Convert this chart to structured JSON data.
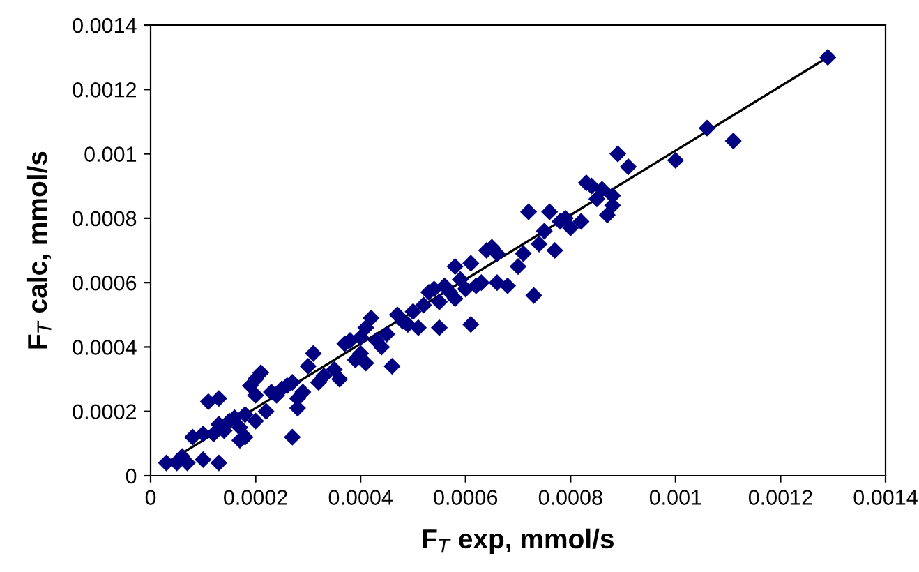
{
  "chart_data": {
    "type": "scatter",
    "xlabel": "F$_{T}$ exp, mmol/s",
    "ylabel": "F$_{T}$ calc, mmol/s",
    "xlim": [
      0,
      0.0014
    ],
    "ylim": [
      0,
      0.0014
    ],
    "xticks": [
      0,
      0.0002,
      0.0004,
      0.0006,
      0.0008,
      0.001,
      0.0012,
      0.0014
    ],
    "yticks": [
      0,
      0.0002,
      0.0004,
      0.0006,
      0.0008,
      0.001,
      0.0012,
      0.0014
    ],
    "grid": false,
    "legend": false,
    "marker": "diamond",
    "series": [
      {
        "color": "#000080",
        "x": [
          3e-05,
          5e-05,
          7e-05,
          6e-05,
          8e-05,
          0.0001,
          0.0001,
          0.00011,
          0.00013,
          0.00012,
          0.00013,
          0.00013,
          0.00014,
          0.00015,
          0.00016,
          0.00017,
          0.00017,
          0.00018,
          0.00018,
          0.00019,
          0.0002,
          0.0002,
          0.00021,
          0.0002,
          0.00022,
          0.00023,
          0.00024,
          0.00025,
          0.00026,
          0.00027,
          0.00027,
          0.00028,
          0.00028,
          0.00029,
          0.0003,
          0.00031,
          0.00032,
          0.00033,
          0.00035,
          0.00036,
          0.00037,
          0.00038,
          0.00039,
          0.0004,
          0.0004,
          0.00041,
          0.00041,
          0.00042,
          0.00043,
          0.00044,
          0.00045,
          0.00046,
          0.00047,
          0.00048,
          0.00049,
          0.0005,
          0.00051,
          0.00052,
          0.00053,
          0.00054,
          0.00055,
          0.00055,
          0.00056,
          0.00057,
          0.00058,
          0.00058,
          0.00059,
          0.0006,
          0.00061,
          0.00062,
          0.00063,
          0.00064,
          0.00065,
          0.00066,
          0.00066,
          0.00061,
          0.00068,
          0.0007,
          0.00071,
          0.00072,
          0.00073,
          0.00074,
          0.00075,
          0.00076,
          0.00077,
          0.00078,
          0.00079,
          0.0008,
          0.00082,
          0.00083,
          0.00084,
          0.00085,
          0.00086,
          0.00087,
          0.00088,
          0.00088,
          0.00089,
          0.00091,
          0.001,
          0.00106,
          0.00111,
          0.00129
        ],
        "values": [
          4e-05,
          4e-05,
          4e-05,
          6e-05,
          0.00012,
          0.00013,
          5e-05,
          0.00023,
          0.00024,
          0.00013,
          4e-05,
          0.00016,
          0.00014,
          0.00017,
          0.00018,
          0.00015,
          0.00011,
          0.00012,
          0.00019,
          0.00028,
          0.0003,
          0.00025,
          0.00032,
          0.00017,
          0.0002,
          0.00026,
          0.00025,
          0.00027,
          0.00028,
          0.00029,
          0.00012,
          0.00024,
          0.00021,
          0.00026,
          0.00034,
          0.00038,
          0.00029,
          0.00031,
          0.00033,
          0.0003,
          0.00041,
          0.00042,
          0.00036,
          0.00038,
          0.00043,
          0.00035,
          0.00046,
          0.00049,
          0.00042,
          0.0004,
          0.00044,
          0.00034,
          0.0005,
          0.00048,
          0.00047,
          0.00051,
          0.00046,
          0.00053,
          0.00057,
          0.00058,
          0.00054,
          0.00046,
          0.00059,
          0.00057,
          0.00055,
          0.00065,
          0.00061,
          0.00058,
          0.00066,
          0.00059,
          0.0006,
          0.0007,
          0.00071,
          0.00069,
          0.0006,
          0.00047,
          0.00059,
          0.00065,
          0.00069,
          0.00082,
          0.00056,
          0.00072,
          0.00076,
          0.00082,
          0.0007,
          0.00079,
          0.0008,
          0.00077,
          0.00079,
          0.00091,
          0.0009,
          0.00086,
          0.00089,
          0.00081,
          0.00084,
          0.00087,
          0.001,
          0.00096,
          0.00098,
          0.00108,
          0.00104,
          0.0013
        ]
      },
      {
        "type": "line",
        "color": "#000000",
        "marker": "none",
        "x": [
          3e-05,
          0.00129
        ],
        "values": [
          4e-05,
          0.0013
        ]
      }
    ]
  }
}
